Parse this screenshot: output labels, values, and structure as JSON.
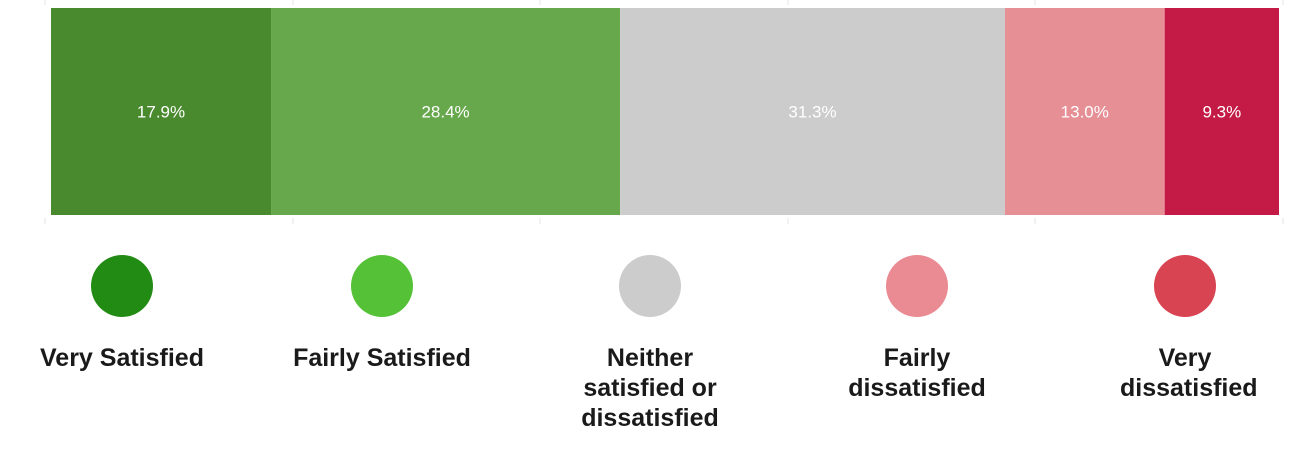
{
  "chart_data": {
    "type": "bar",
    "orientation": "horizontal-stacked-100",
    "series": [
      {
        "name": "Very Satisfied",
        "value": 17.9,
        "label": "17.9%",
        "color": "#4a8a2e",
        "legend_color": "#228b14"
      },
      {
        "name": "Fairly Satisfied",
        "value": 28.4,
        "label": "28.4%",
        "color": "#67a84c",
        "legend_color": "#55c136"
      },
      {
        "name": "Neither satisfied or dissatisfied",
        "value": 31.3,
        "label": "31.3%",
        "color": "#cccccc",
        "legend_color": "#cccccc"
      },
      {
        "name": "Fairly dissatisfied",
        "value": 13.0,
        "label": "13.0%",
        "color": "#e69096",
        "legend_color": "#ea8a92"
      },
      {
        "name": "Very dissatisfied",
        "value": 9.3,
        "label": "9.3%",
        "color": "#c41a46",
        "legend_color": "#d94452"
      }
    ],
    "xlim": [
      0,
      100
    ],
    "grid": true,
    "legend_position": "bottom"
  }
}
